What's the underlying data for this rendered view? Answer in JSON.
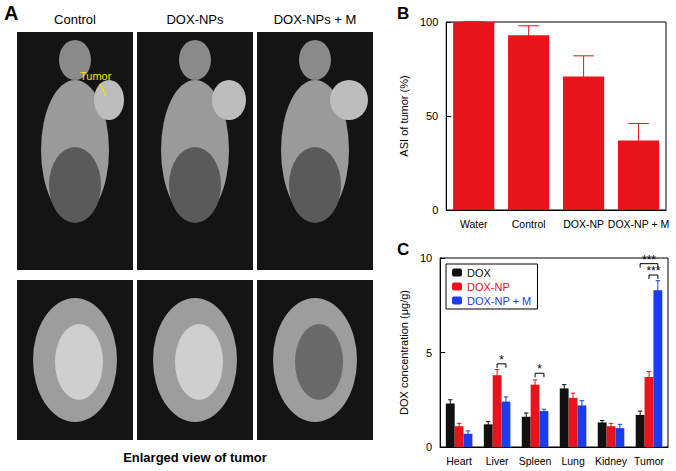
{
  "panel_a": {
    "label": "A",
    "columns": [
      "Control",
      "DOX-NPs",
      "DOX-NPs + M"
    ],
    "annotation": "Tumor",
    "caption": "Enlarged view of tumor"
  },
  "chart_data": [
    {
      "type": "bar",
      "title": "B",
      "categories": [
        "Water",
        "Control",
        "DOX-NP",
        "DOX-NP + M"
      ],
      "values": [
        100,
        93,
        71,
        37
      ],
      "errors": [
        0,
        5,
        11,
        9
      ],
      "color": "#e8141b",
      "ylabel": "ASI of tumor (%)",
      "ylim": [
        0,
        100
      ],
      "yticks": [
        0,
        50,
        100
      ],
      "grid": false
    },
    {
      "type": "bar",
      "title": "C",
      "categories": [
        "Heart",
        "Liver",
        "Spleen",
        "Lung",
        "Kidney",
        "Tumor"
      ],
      "series": [
        {
          "name": "DOX",
          "color": "#111111",
          "values": [
            2.3,
            1.2,
            1.6,
            3.1,
            1.3,
            1.7
          ],
          "errors": [
            0.2,
            0.15,
            0.2,
            0.2,
            0.1,
            0.2
          ]
        },
        {
          "name": "DOX-NP",
          "color": "#e8141b",
          "values": [
            1.1,
            3.8,
            3.3,
            2.6,
            1.1,
            3.7
          ],
          "errors": [
            0.15,
            0.3,
            0.25,
            0.25,
            0.15,
            0.3
          ]
        },
        {
          "name": "DOX-NP + M",
          "color": "#1a3de8",
          "values": [
            0.7,
            2.4,
            1.9,
            2.2,
            1.0,
            8.3
          ],
          "errors": [
            0.15,
            0.25,
            0.1,
            0.25,
            0.2,
            0.5
          ]
        }
      ],
      "ylabel": "DOX concentration (μg/g)",
      "ylim": [
        0,
        10
      ],
      "yticks": [
        0,
        5,
        10
      ],
      "grid": false,
      "legend": "upper left",
      "annotations": [
        {
          "text": "*",
          "category": "Liver",
          "from": "DOX-NP",
          "to": "DOX-NP + M",
          "y": 4.4
        },
        {
          "text": "*",
          "category": "Spleen",
          "from": "DOX-NP",
          "to": "DOX-NP + M",
          "y": 3.9
        },
        {
          "text": "***",
          "category": "Tumor",
          "from": "DOX",
          "to": "DOX-NP + M",
          "y": 9.7
        },
        {
          "text": "***",
          "category": "Tumor",
          "from": "DOX-NP",
          "to": "DOX-NP + M",
          "y": 9.1
        }
      ]
    }
  ]
}
